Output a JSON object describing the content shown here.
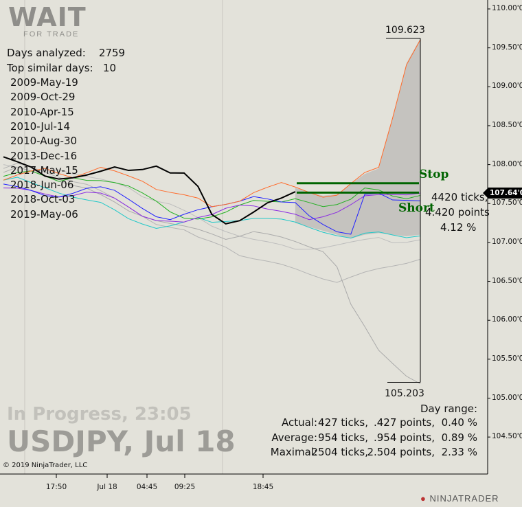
{
  "logo": {
    "main": "WAIT",
    "sub": "FOR TRADE"
  },
  "stats": {
    "days_analyzed_label": "Days analyzed:",
    "days_analyzed": "2759",
    "top_similar_label": "Top similar days:",
    "top_similar": "10",
    "similar_days": [
      "2009-May-19",
      "2009-Oct-29",
      "2010-Apr-15",
      "2010-Jul-14",
      "2010-Aug-30",
      "2013-Dec-16",
      "2017-May-15",
      "2018-Jun-06",
      "2018-Oct-03",
      "2019-May-06"
    ]
  },
  "status": {
    "in_progress": "In Progress,  23:05",
    "title": "USDJPY, Jul 18",
    "copyright": "© 2019 NinjaTrader, LLC"
  },
  "day_range": {
    "label": "Day range:",
    "rows": [
      {
        "name": "Actual:",
        "ticks": "427 ticks,",
        "points": ".427 points,",
        "pct": "0.40 %"
      },
      {
        "name": "Average:",
        "ticks": "954 ticks,",
        "points": ".954 points,",
        "pct": "0.89 %"
      },
      {
        "name": "Maximal:",
        "ticks": "2504 ticks,",
        "points": "2.504 points,",
        "pct": "2.33 %"
      }
    ]
  },
  "target": {
    "ticks": "4420 ticks,",
    "points": "4.420 points",
    "pct": "4.12 %"
  },
  "labels": {
    "stop": "Stop",
    "short": "Short",
    "high": "109.623",
    "low": "105.203",
    "current_price": "107.64'0"
  },
  "brand": "NINJATRADER",
  "colors": {
    "background": "#e3e2da",
    "current": "#000000",
    "stop_short": "#006400",
    "band": "#bdbcb8"
  },
  "chart_data": {
    "type": "line",
    "y_ticks": [
      "110.00'0",
      "109.50'0",
      "109.00'0",
      "108.50'0",
      "108.00'0",
      "107.50'0",
      "107.00'0",
      "106.50'0",
      "106.00'0",
      "105.50'0",
      "105.00'0",
      "104.50'0"
    ],
    "y_tick_values": [
      110,
      109.5,
      109,
      108.5,
      108,
      107.5,
      107,
      106.5,
      106,
      105.5,
      105,
      104.5
    ],
    "x_ticks": [
      "17:50",
      "Jul 18",
      "04:45",
      "09:25",
      "18:45"
    ],
    "ylim": [
      104.2,
      110.1
    ],
    "stop_level": 107.76,
    "short_level": 107.64,
    "high": 109.623,
    "low": 105.203,
    "series": [
      {
        "color": "#000000",
        "values": [
          108.1,
          108.02,
          107.95,
          107.85,
          107.83,
          107.85,
          107.87,
          107.9,
          107.95,
          107.92,
          107.95,
          108.0,
          107.9,
          107.88,
          107.7,
          107.35,
          107.25,
          107.3,
          107.4,
          107.5,
          107.55,
          107.64
        ]
      },
      {
        "color": "#ff6a2a",
        "values": [
          107.8,
          107.85,
          107.9,
          107.95,
          107.9,
          107.85,
          107.9,
          107.95,
          107.9,
          107.85,
          107.8,
          107.7,
          107.65,
          107.6,
          107.55,
          107.45,
          107.5,
          107.55,
          107.65,
          107.7,
          107.75,
          107.7,
          107.65,
          107.6,
          107.62,
          107.75,
          107.88,
          107.95,
          108.6,
          109.3,
          109.62
        ]
      },
      {
        "color": "#2020ff",
        "values": [
          107.75,
          107.7,
          107.65,
          107.6,
          107.6,
          107.65,
          107.7,
          107.7,
          107.65,
          107.55,
          107.45,
          107.35,
          107.3,
          107.35,
          107.4,
          107.45,
          107.5,
          107.55,
          107.6,
          107.55,
          107.5,
          107.5,
          107.35,
          107.25,
          107.15,
          107.1,
          107.6,
          107.62,
          107.55,
          107.56,
          107.55
        ]
      },
      {
        "color": "#8a2be2",
        "values": [
          107.7,
          107.68,
          107.65,
          107.62,
          107.6,
          107.62,
          107.65,
          107.62,
          107.55,
          107.45,
          107.35,
          107.3,
          107.28,
          107.25,
          107.3,
          107.35,
          107.45,
          107.5,
          107.48,
          107.42,
          107.38,
          107.35,
          107.3,
          107.35,
          107.4,
          107.48,
          107.58,
          107.6,
          107.62,
          107.63,
          107.65
        ]
      },
      {
        "color": "#22b022",
        "values": [
          107.85,
          107.88,
          107.9,
          107.85,
          107.8,
          107.85,
          107.8,
          107.78,
          107.75,
          107.72,
          107.65,
          107.55,
          107.4,
          107.3,
          107.28,
          107.32,
          107.4,
          107.5,
          107.55,
          107.52,
          107.5,
          107.55,
          107.52,
          107.48,
          107.5,
          107.55,
          107.68,
          107.66,
          107.6,
          107.58,
          107.62
        ]
      },
      {
        "color": "#20c8c8",
        "values": [
          107.8,
          107.82,
          107.75,
          107.7,
          107.65,
          107.6,
          107.55,
          107.5,
          107.4,
          107.3,
          107.25,
          107.2,
          107.22,
          107.25,
          107.3,
          107.25,
          107.28,
          107.3,
          107.32,
          107.3,
          107.28,
          107.25,
          107.2,
          107.15,
          107.1,
          107.05,
          107.1,
          107.12,
          107.1,
          107.08,
          107.1
        ]
      },
      {
        "color": "#aaaaaa",
        "values": [
          107.9,
          107.95,
          107.9,
          107.85,
          107.8,
          107.75,
          107.7,
          107.6,
          107.5,
          107.4,
          107.35,
          107.3,
          107.25,
          107.2,
          107.15,
          107.1,
          107.05,
          107.1,
          107.15,
          107.1,
          107.05,
          107.0,
          106.95,
          106.9,
          106.7,
          106.2,
          105.9,
          105.6,
          105.45,
          105.3,
          105.2
        ]
      },
      {
        "color": "#b4b4b4",
        "values": [
          107.95,
          108.0,
          107.95,
          107.9,
          107.85,
          107.8,
          107.75,
          107.65,
          107.55,
          107.45,
          107.35,
          107.25,
          107.2,
          107.15,
          107.05,
          107.0,
          106.95,
          106.85,
          106.8,
          106.75,
          106.7,
          106.65,
          106.6,
          106.55,
          106.5,
          106.55,
          106.6,
          106.65,
          106.7,
          106.75,
          106.8
        ]
      },
      {
        "color": "#bdbdbd",
        "values": [
          108.0,
          107.95,
          107.9,
          107.92,
          107.95,
          107.9,
          107.85,
          107.8,
          107.75,
          107.7,
          107.6,
          107.55,
          107.5,
          107.4,
          107.3,
          107.2,
          107.15,
          107.1,
          107.05,
          107.0,
          106.95,
          106.9,
          106.92,
          106.95,
          106.98,
          107.0,
          107.02,
          107.05,
          107.0,
          107.02,
          107.05
        ]
      }
    ]
  }
}
